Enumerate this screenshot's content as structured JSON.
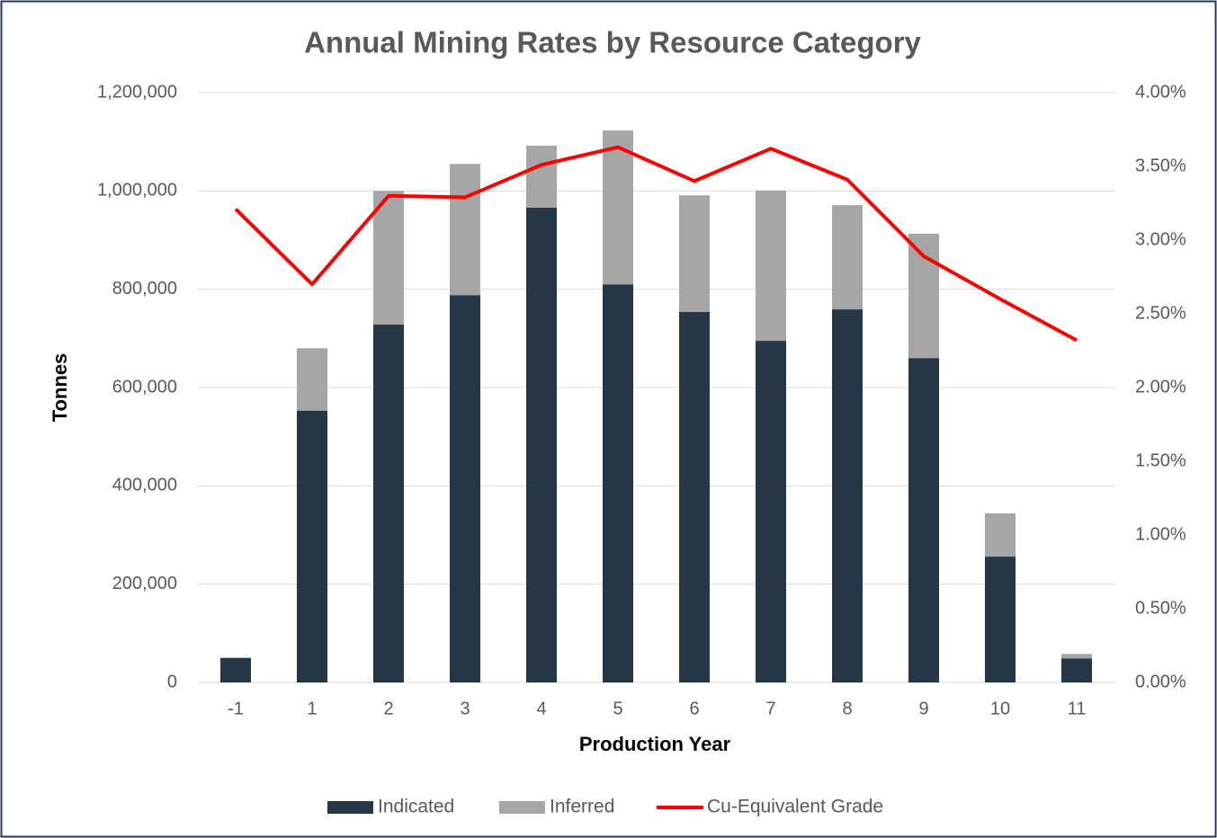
{
  "chart_data": {
    "type": "bar",
    "stacked": true,
    "title": "Annual Mining Rates by Resource Category",
    "x_label": "Production Year",
    "y_label": "Tonnes",
    "categories": [
      "-1",
      "1",
      "2",
      "3",
      "4",
      "5",
      "6",
      "7",
      "8",
      "9",
      "10",
      "11"
    ],
    "series": [
      {
        "name": "Indicated",
        "color": "#253746",
        "values": [
          50000,
          553000,
          728000,
          788000,
          966000,
          810000,
          754000,
          695000,
          759000,
          660000,
          256000,
          49000
        ]
      },
      {
        "name": "Inferred",
        "color": "#a6a6a6",
        "values": [
          0,
          127000,
          272000,
          267000,
          126000,
          313000,
          237000,
          306000,
          212000,
          253000,
          88000,
          9000
        ]
      },
      {
        "name": "Cu-Equivalent Grade",
        "color": "#ff0000",
        "type": "line",
        "axis": "y2",
        "values": [
          3.21,
          2.7,
          3.3,
          3.29,
          3.51,
          3.63,
          3.4,
          3.62,
          3.41,
          2.89,
          2.6,
          2.32
        ]
      }
    ],
    "ylim": [
      0,
      1200000
    ],
    "yticks": [
      0,
      {
        "value": 200000,
        "label": "200,000"
      },
      {
        "value": 400000,
        "label": "400,000"
      },
      {
        "value": 600000,
        "label": "600,000"
      },
      {
        "value": 800000,
        "label": "800,000"
      },
      {
        "value": 1000000,
        "label": "1,000,000"
      },
      {
        "value": 1200000,
        "label": "1,200,000"
      }
    ],
    "y2lim": [
      0,
      4
    ],
    "y2ticks": [
      {
        "value": 0,
        "label": "0.00%"
      },
      {
        "value": 0.5,
        "label": "0.50%"
      },
      {
        "value": 1,
        "label": "1.00%"
      },
      {
        "value": 1.5,
        "label": "1.50%"
      },
      {
        "value": 2,
        "label": "2.00%"
      },
      {
        "value": 2.5,
        "label": "2.50%"
      },
      {
        "value": 3,
        "label": "3.00%"
      },
      {
        "value": 3.5,
        "label": "3.50%"
      },
      {
        "value": 4,
        "label": "4.00%"
      }
    ],
    "grid": true,
    "legend": "bottom"
  }
}
